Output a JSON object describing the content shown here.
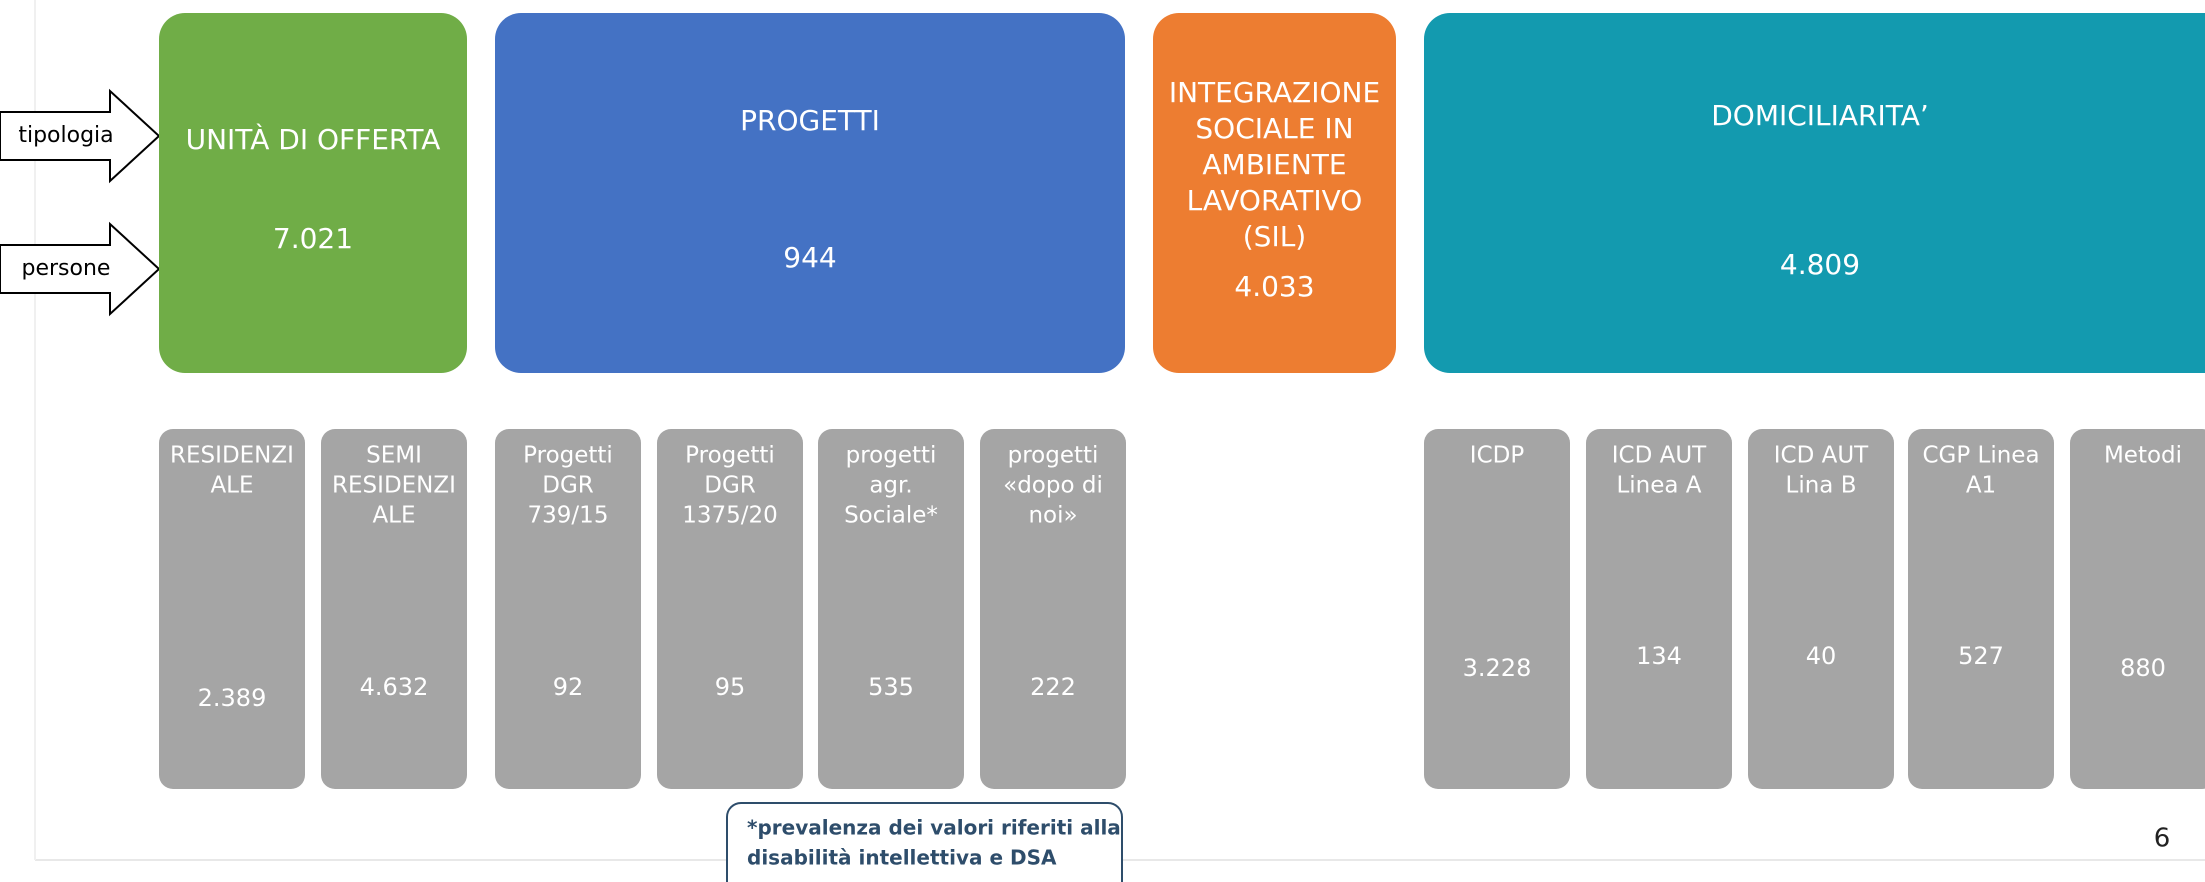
{
  "arrows": [
    "tipologia",
    "persone"
  ],
  "top_boxes": [
    {
      "title": [
        "UNITÀ DI OFFERTA"
      ],
      "value": "7.021"
    },
    {
      "title": [
        "PROGETTI"
      ],
      "value": "944"
    },
    {
      "title": [
        "INTEGRAZIONE",
        "SOCIALE IN",
        "AMBIENTE",
        "LAVORATIVO",
        "(SIL)"
      ],
      "value": "4.033"
    },
    {
      "title": [
        "DOMICILIARITA’"
      ],
      "value": "4.809"
    }
  ],
  "bottom_boxes": [
    {
      "label": [
        "RESIDENZI",
        "ALE"
      ],
      "value": "2.389"
    },
    {
      "label": [
        "SEMI",
        "RESIDENZI",
        "ALE"
      ],
      "value": "4.632"
    },
    {
      "label": [
        "Progetti",
        "DGR",
        "739/15"
      ],
      "value": "92"
    },
    {
      "label": [
        "Progetti",
        "DGR",
        "1375/20"
      ],
      "value": "95"
    },
    {
      "label": [
        "progetti",
        "agr.",
        "Sociale*"
      ],
      "value": "535"
    },
    {
      "label": [
        "progetti",
        "«dopo di",
        "noi»"
      ],
      "value": "222"
    },
    {
      "label": [
        "ICDP"
      ],
      "value": "3.228"
    },
    {
      "label": [
        "ICD AUT",
        "Linea A"
      ],
      "value": "134"
    },
    {
      "label": [
        "ICD AUT",
        "Lina B"
      ],
      "value": "40"
    },
    {
      "label": [
        "CGP Linea",
        "A1"
      ],
      "value": "527"
    },
    {
      "label": [
        "Metodi"
      ],
      "value": "880"
    }
  ],
  "note": [
    "*prevalenza dei valori riferiti alla",
    "disabilità intellettiva e DSA"
  ],
  "page_number": "6"
}
